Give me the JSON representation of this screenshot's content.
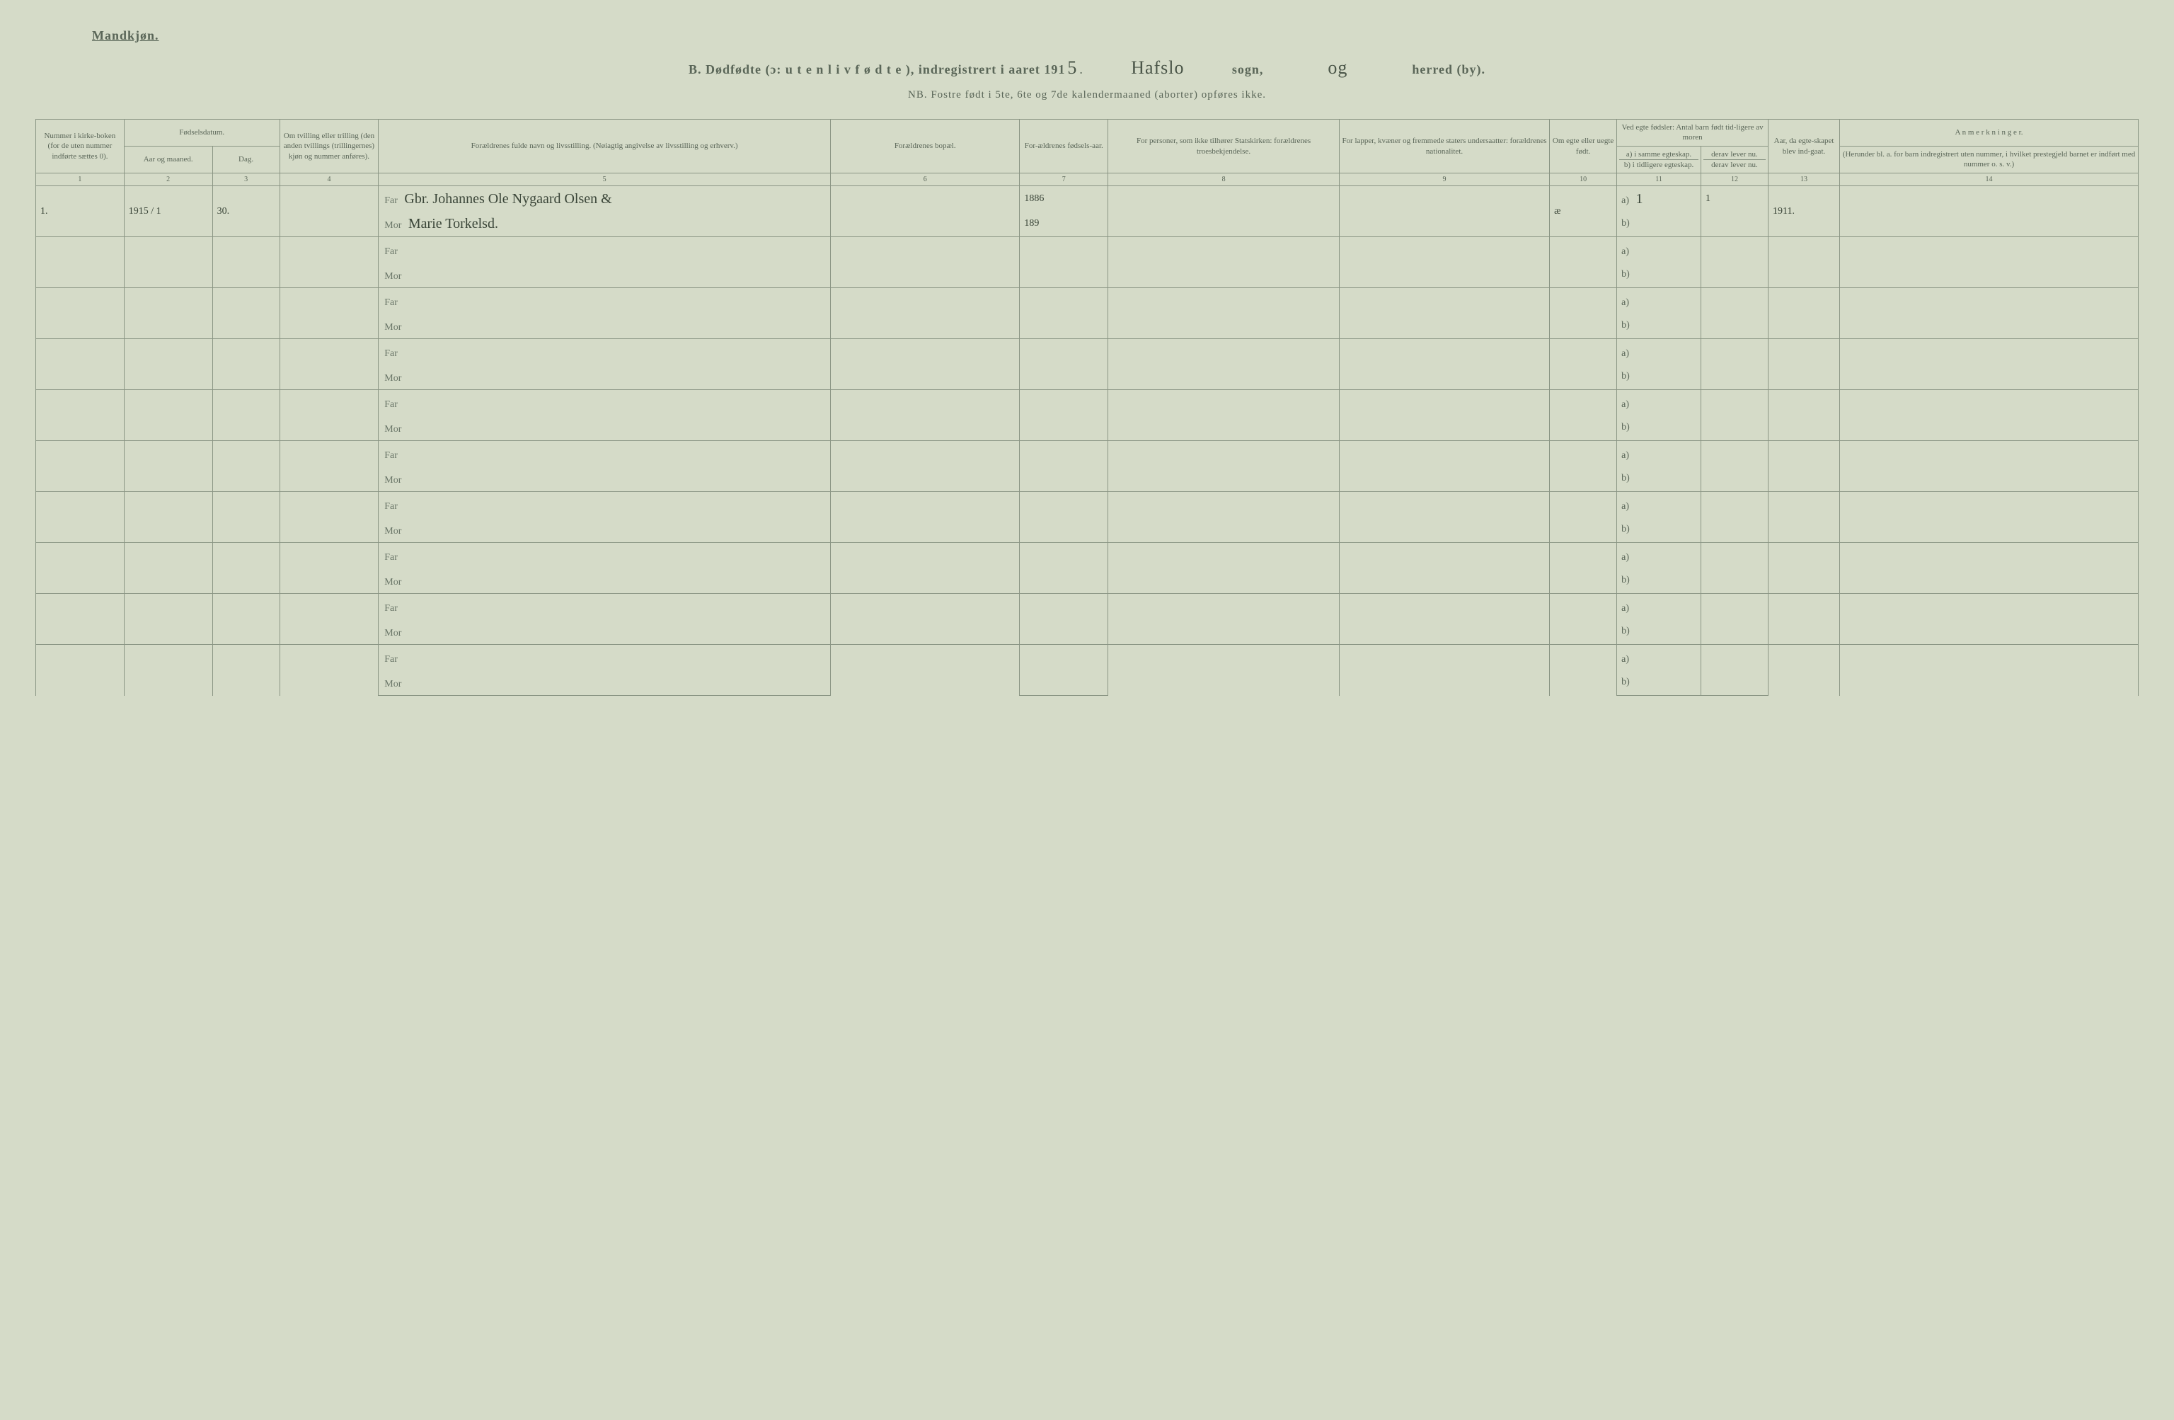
{
  "labels": {
    "top": "Mandkjøn.",
    "title_prefix": "B.  Dødfødte (ɔ:",
    "title_spaced": "u t e n  l i v  f ø d t e ),  indregistrert  i  aaret  191",
    "year_suffix": "5",
    "sogn": "sogn,",
    "herred": "herred (by).",
    "nb": "NB.  Fostre født i 5te, 6te og 7de kalendermaaned (aborter) opføres ikke."
  },
  "handwritten": {
    "parish": "Hafslo",
    "district": "og"
  },
  "headers": {
    "c1": "Nummer i kirke-boken (for de uten nummer indførte sættes 0).",
    "c2": "Fødselsdatum.",
    "c2a": "Aar og maaned.",
    "c2b": "Dag.",
    "c3": "Om tvilling eller trilling (den anden tvillings (trillingernes) kjøn og nummer anføres).",
    "c4": "Forældrenes fulde navn og livsstilling. (Nøiagtig angivelse av livsstilling og erhverv.)",
    "c5": "Forældrenes bopæl.",
    "c6": "For-ældrenes fødsels-aar.",
    "c7": "For personer, som ikke tilhører Statskirken: forældrenes troesbekjendelse.",
    "c8": "For lapper, kvæner og fremmede staters undersaatter: forældrenes nationalitet.",
    "c9": "Om egte eller uegte født.",
    "c10": "Ved egte fødsler: Antal barn født tid-ligere av moren",
    "c10a": "a) i samme egteskap.",
    "c10b": "b) i tidligere egteskap.",
    "c11a": "derav lever nu.",
    "c11b": "derav lever nu.",
    "c12": "Aar, da egte-skapet blev ind-gaat.",
    "c13": "A n m e r k n i n g e r.",
    "c13sub": "(Herunder bl. a. for barn indregistrert uten nummer, i hvilket prestegjeld barnet er indført med nummer o. s. v.)"
  },
  "colnums": [
    "1",
    "2",
    "3",
    "4",
    "5",
    "6",
    "7",
    "8",
    "9",
    "10",
    "11",
    "12",
    "13",
    "14"
  ],
  "parent_labels": {
    "far": "Far",
    "mor": "Mor"
  },
  "entry": {
    "num": "1.",
    "year_month": "1915 / 1",
    "day": "30.",
    "far_name": "Gbr. Johannes Ole Nygaard Olsen &",
    "mor_name": "Marie Torkelsd.",
    "far_year": "1886",
    "mor_year": "189",
    "egte": "æ",
    "a_val": "1",
    "a_lever": "1",
    "year_married": "1911."
  },
  "colors": {
    "bg": "#d5dbc8",
    "border": "#8a9584",
    "text": "#5a6658",
    "handwriting": "#3a4538"
  },
  "col_widths_pct": [
    4.2,
    4.2,
    3.2,
    4.7,
    21.5,
    9,
    4.2,
    11,
    10,
    3.2,
    4,
    3.2,
    3.4,
    14.2
  ],
  "num_empty_rows": 9
}
